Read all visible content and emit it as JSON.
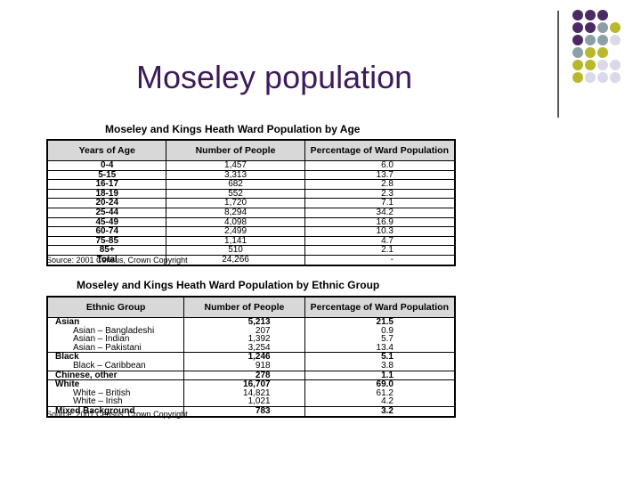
{
  "slide": {
    "title": "Moseley population"
  },
  "decor": {
    "dot_colors": [
      "#4b2a63",
      "#8aa0a6",
      "#b9b82c",
      "#d9d9e8"
    ]
  },
  "age_table": {
    "caption": "Moseley and Kings Heath Ward Population by Age",
    "headers": [
      "Years of Age",
      "Number of People",
      "Percentage of Ward Population"
    ],
    "rows": [
      [
        "0-4",
        "1,457",
        "6.0"
      ],
      [
        "5-15",
        "3,313",
        "13.7"
      ],
      [
        "16-17",
        "682",
        "2.8"
      ],
      [
        "18-19",
        "552",
        "2.3"
      ],
      [
        "20-24",
        "1,720",
        "7.1"
      ],
      [
        "25-44",
        "8,294",
        "34.2"
      ],
      [
        "45-49",
        "4,098",
        "16.9"
      ],
      [
        "60-74",
        "2,499",
        "10.3"
      ],
      [
        "75-85",
        "1,141",
        "4.7"
      ],
      [
        "85+",
        "510",
        "2.1"
      ],
      [
        "Total",
        "24,266",
        "-"
      ]
    ],
    "source": "Source: 2001 Census, Crown Copyright"
  },
  "ethnic_table": {
    "caption": "Moseley and Kings Heath Ward Population by Ethnic Group",
    "headers": [
      "Ethnic Group",
      "Number of People",
      "Percentage of Ward Population"
    ],
    "rows": [
      {
        "group": "Asian",
        "count": "5,213",
        "pct": "21.5",
        "kind": "group"
      },
      {
        "group": "Asian – Bangladeshi",
        "count": "207",
        "pct": "0.9",
        "kind": "sub"
      },
      {
        "group": "Asian – Indian",
        "count": "1,392",
        "pct": "5.7",
        "kind": "sub"
      },
      {
        "group": "Asian – Pakistani",
        "count": "3,254",
        "pct": "13.4",
        "kind": "sub"
      },
      {
        "group": "Black",
        "count": "1,246",
        "pct": "5.1",
        "kind": "group"
      },
      {
        "group": "Black – Caribbean",
        "count": "918",
        "pct": "3.8",
        "kind": "sub"
      },
      {
        "group": "Chinese, other",
        "count": "278",
        "pct": "1.1",
        "kind": "group"
      },
      {
        "group": "White",
        "count": "16,707",
        "pct": "69.0",
        "kind": "group"
      },
      {
        "group": "White – British",
        "count": "14,821",
        "pct": "61.2",
        "kind": "sub"
      },
      {
        "group": "White – Irish",
        "count": "1,021",
        "pct": "4.2",
        "kind": "sub"
      },
      {
        "group": "Mixed Background",
        "count": "783",
        "pct": "3.2",
        "kind": "group"
      }
    ],
    "source": "Source: 2001 Census, Crown Copyright"
  }
}
